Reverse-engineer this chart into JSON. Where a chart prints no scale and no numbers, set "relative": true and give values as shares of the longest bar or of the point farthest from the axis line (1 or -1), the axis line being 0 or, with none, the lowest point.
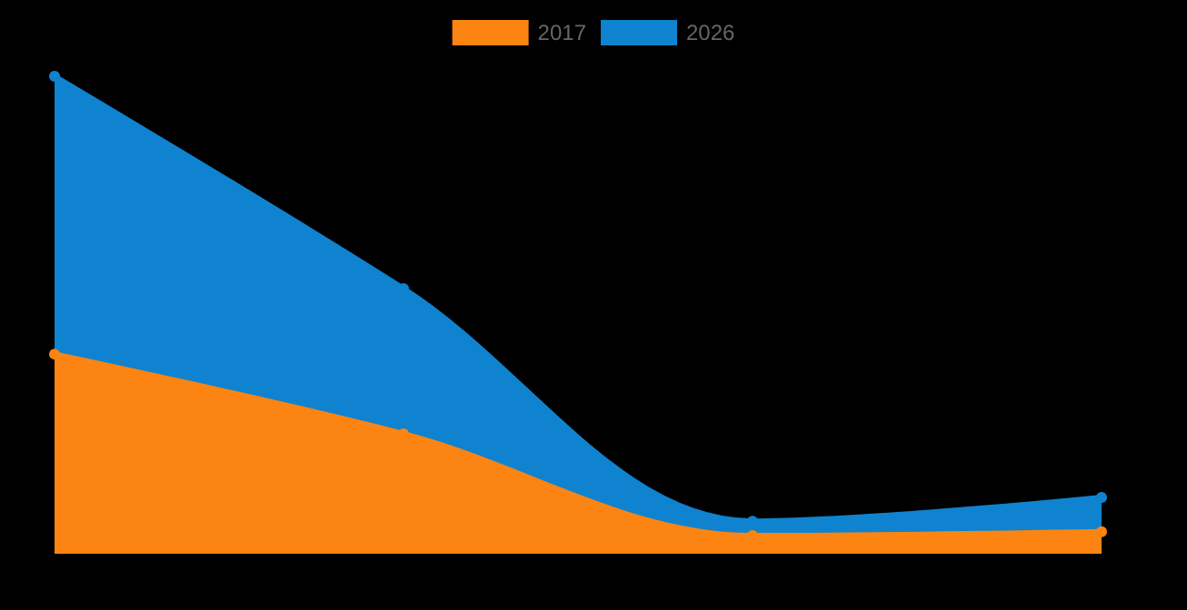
{
  "chart_data": {
    "type": "area",
    "relative": true,
    "categories": [
      null,
      null,
      null,
      null
    ],
    "legend": "top",
    "marker": "circle",
    "series": [
      {
        "name": "2017",
        "color": "#fb8412",
        "values": [
          0.418,
          0.251,
          0.038,
          0.046
        ]
      },
      {
        "name": "2026",
        "color": "#0f83cf",
        "values": [
          1,
          0.555,
          0.068,
          0.118
        ]
      }
    ]
  }
}
